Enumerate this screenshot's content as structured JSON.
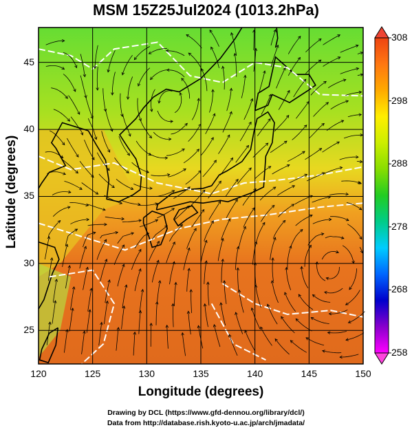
{
  "title": "MSM 15Z25Jul2024 (1013.2hPa)",
  "axes": {
    "xlabel": "Longitude (degrees)",
    "ylabel": "Latitude  (degrees)",
    "xticks": [
      "120",
      "125",
      "130",
      "135",
      "140",
      "145",
      "150"
    ],
    "yticks": [
      "25",
      "30",
      "35",
      "40",
      "45"
    ]
  },
  "colorbar": {
    "labels": [
      "308",
      "298",
      "288",
      "278",
      "268",
      "258"
    ],
    "colors": [
      "#ff00ff",
      "#8800cc",
      "#0000cc",
      "#0066ff",
      "#00ccff",
      "#00cc88",
      "#22cc22",
      "#88dd00",
      "#ccee00",
      "#ffee00",
      "#ffaa00",
      "#ff7711",
      "#ee4411"
    ]
  },
  "credits": {
    "line1": "Drawing by DCL (https://www.gfd-dennou.org/library/dcl/)",
    "line2": "Data from http://database.rish.kyoto-u.ac.jp/arch/jmadata/"
  },
  "map_data": {
    "lon_range": [
      120,
      150
    ],
    "lat_range": [
      22.5,
      47.6
    ],
    "field": "temperature (K) with streamlines",
    "colors": {
      "warm_south": "#e8741e",
      "mid": "#f0a020",
      "yellow": "#e8d820",
      "green_north": "#66dd33",
      "contour": "#ffffff",
      "coast": "#000000"
    }
  }
}
